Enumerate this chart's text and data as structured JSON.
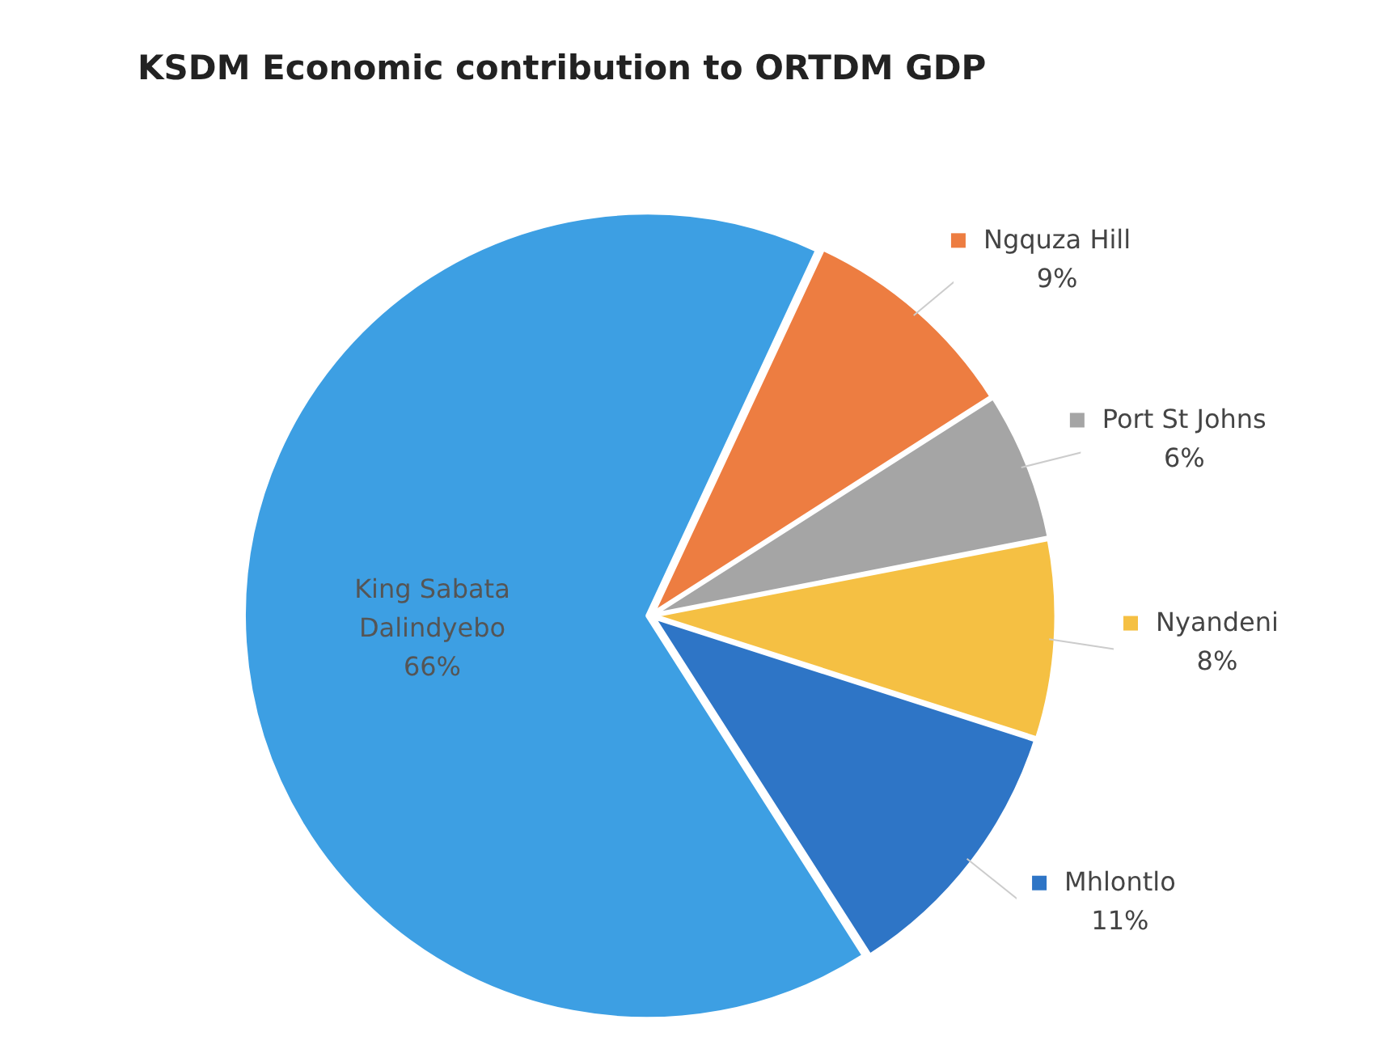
{
  "chart_data": {
    "type": "pie",
    "title": "KSDM Economic contribution to ORTDM GDP",
    "categories": [
      "Ngquza Hill",
      "Port St Johns",
      "Nyandeni",
      "Mhlontlo",
      "King Sabata Dalindyebo"
    ],
    "values": [
      9,
      6,
      8,
      11,
      66
    ],
    "colors": [
      "#ed7d41",
      "#a5a5a5",
      "#f5c043",
      "#2e75c6",
      "#3d9fe3"
    ],
    "value_labels": [
      "9%",
      "6%",
      "8%",
      "11%",
      "66%"
    ],
    "legend": "right"
  }
}
